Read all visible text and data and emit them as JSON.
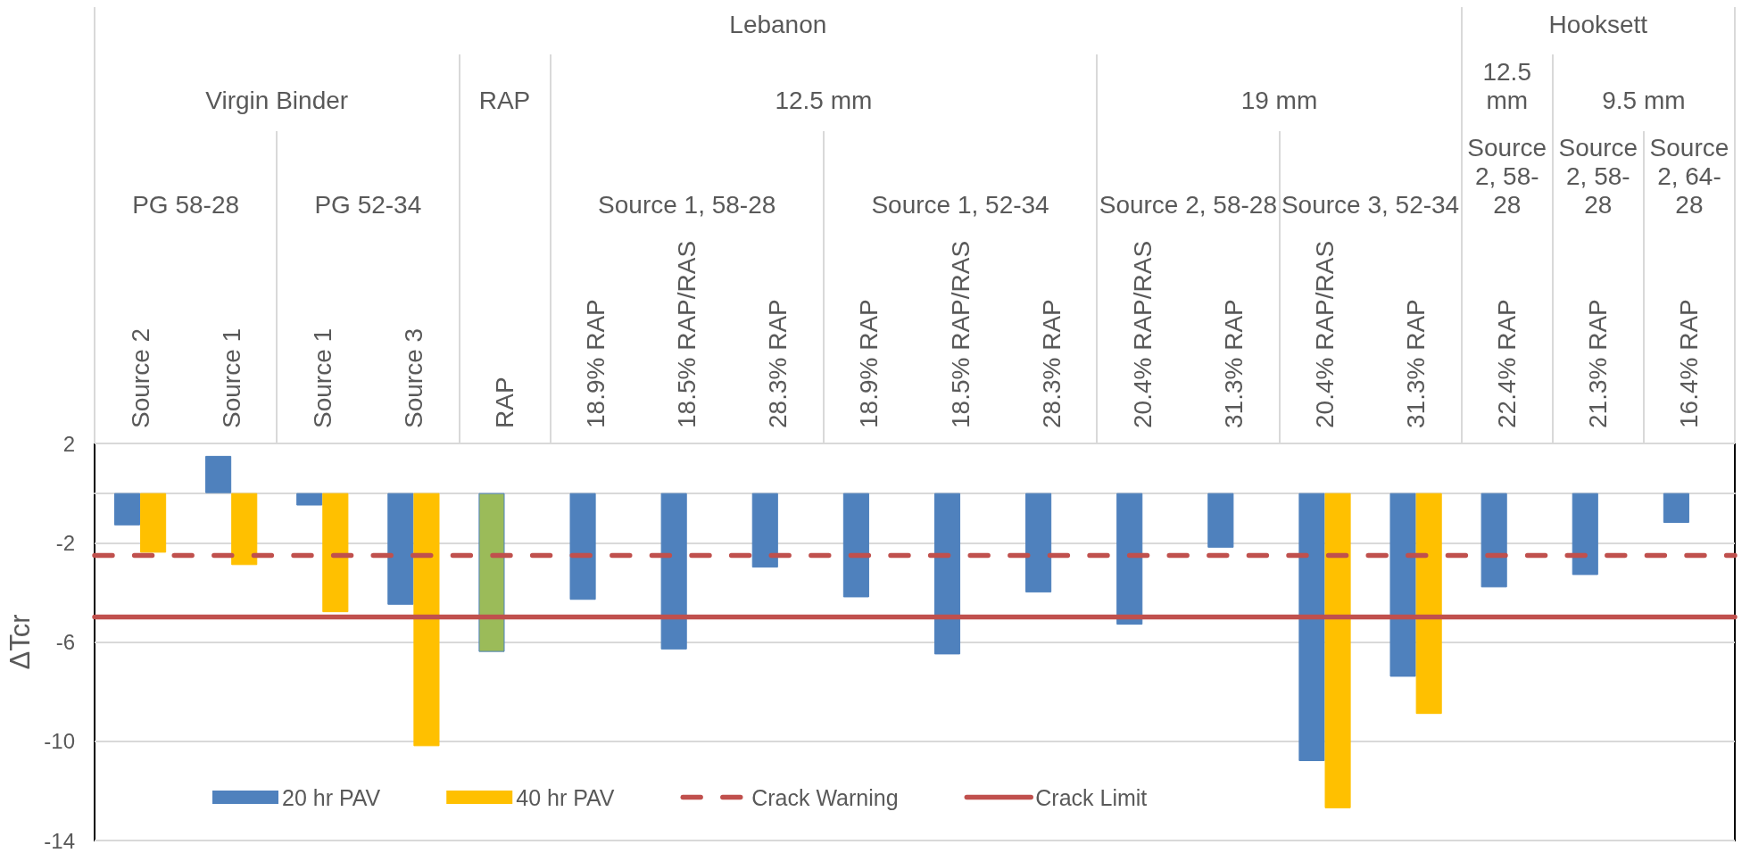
{
  "chart_data": {
    "type": "bar",
    "ylabel": "ΔTcr",
    "categories": [
      "Source 2",
      "Source 1",
      "Source 1",
      "Source 3",
      "RAP",
      "18.9% RAP",
      "18.5% RAP/RAS",
      "28.3% RAP",
      "18.9% RAP",
      "18.5% RAP/RAS",
      "28.3% RAP",
      "20.4% RAP/RAS",
      "31.3% RAP",
      "20.4% RAP/RAS",
      "31.3% RAP",
      "22.4% RAP",
      "21.3% RAP",
      "16.4% RAP"
    ],
    "series": [
      {
        "name": "20 hr PAV",
        "color": "#4f81bd",
        "colors": [
          "#4f81bd",
          "#4f81bd",
          "#4f81bd",
          "#4f81bd",
          "#9bbb59",
          "#4f81bd",
          "#4f81bd",
          "#4f81bd",
          "#4f81bd",
          "#4f81bd",
          "#4f81bd",
          "#4f81bd",
          "#4f81bd",
          "#4f81bd",
          "#4f81bd",
          "#4f81bd",
          "#4f81bd",
          "#4f81bd"
        ],
        "values": [
          -1.3,
          1.5,
          -0.5,
          -4.5,
          -6.4,
          -4.3,
          -6.3,
          -3.0,
          -4.2,
          -6.5,
          -4.0,
          -5.3,
          -2.2,
          -10.8,
          -7.4,
          -3.8,
          -3.3,
          -1.2
        ]
      },
      {
        "name": "40 hr PAV",
        "color": "#ffc000",
        "values": [
          -2.4,
          -2.9,
          -4.8,
          -10.2,
          null,
          null,
          null,
          null,
          null,
          null,
          null,
          null,
          null,
          -12.7,
          -8.9,
          null,
          null,
          null
        ]
      }
    ],
    "ylim": [
      -14,
      2
    ],
    "yticks": [
      -14,
      -10,
      -6,
      -2,
      2
    ],
    "grid": "y",
    "legend": "bottom",
    "ref_lines": [
      {
        "axis": "y",
        "value": -2.5,
        "label": "Crack Warning",
        "color": "#c0504d",
        "line_style": "dashed"
      },
      {
        "axis": "y",
        "value": -5,
        "label": "Crack Limit",
        "color": "#c0504d",
        "line_style": "solid"
      }
    ],
    "annotations": [
      "Lebanon",
      "Hooksett",
      "Virgin Binder",
      "RAP",
      "12.5 mm",
      "19 mm",
      "12.5 mm",
      "9.5 mm",
      "PG 58-28",
      "PG 52-34",
      "Source 1, 58-28",
      "Source 1, 52-34",
      "Source 2, 58-28",
      "Source 3, 52-34",
      "Source 2, 58-28",
      "Source 2, 58-28",
      "Source 2, 64-28"
    ]
  }
}
